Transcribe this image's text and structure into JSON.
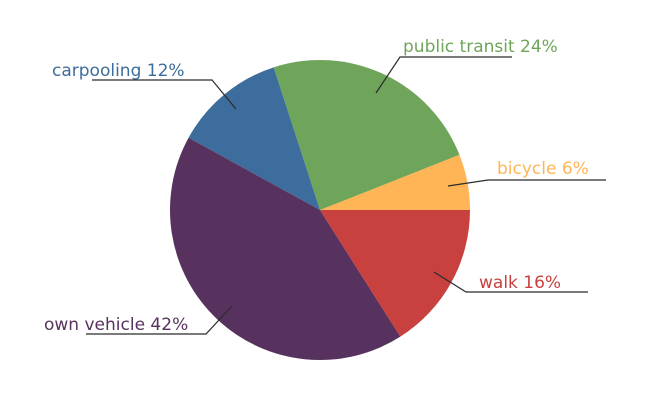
{
  "chart_data": {
    "type": "pie",
    "slices": [
      {
        "label": "bicycle",
        "value": 6,
        "display": "bicycle 6%",
        "color": "#ffb555"
      },
      {
        "label": "public transit",
        "value": 24,
        "display": "public transit 24%",
        "color": "#6fa55a"
      },
      {
        "label": "carpooling",
        "value": 12,
        "display": "carpooling 12%",
        "color": "#3d6d9c"
      },
      {
        "label": "own vehicle",
        "value": 42,
        "display": "own vehicle 42%",
        "color": "#57325e"
      },
      {
        "label": "walk",
        "value": 16,
        "display": "walk 16%",
        "color": "#c8413f"
      }
    ]
  }
}
